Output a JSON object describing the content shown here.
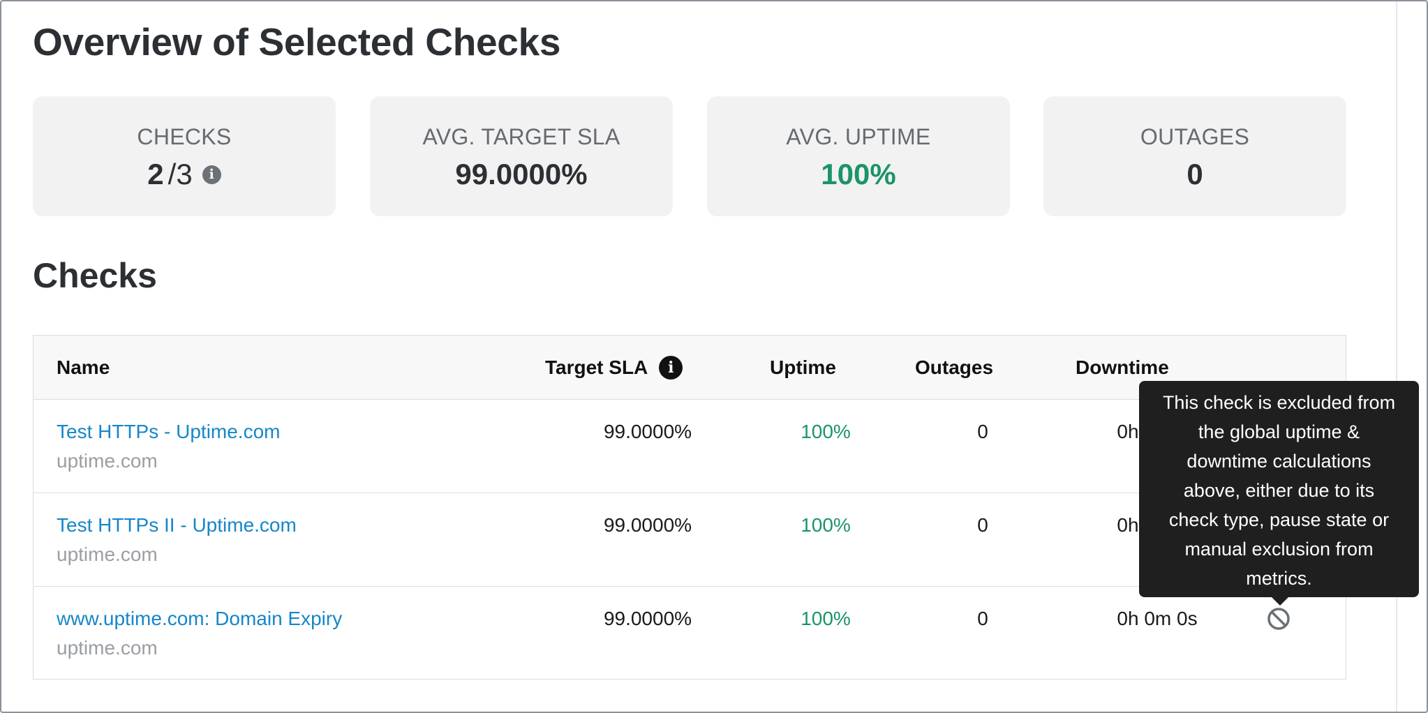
{
  "page": {
    "title": "Overview of Selected Checks"
  },
  "stats": [
    {
      "label": "CHECKS",
      "value": "2",
      "sub": "/3",
      "has_info": true,
      "info_glyph": "i"
    },
    {
      "label": "AVG. TARGET SLA",
      "value": "99.0000%"
    },
    {
      "label": "AVG. UPTIME",
      "value": "100%",
      "color": "#1b9466"
    },
    {
      "label": "OUTAGES",
      "value": "0"
    }
  ],
  "checks_section": {
    "title": "Checks"
  },
  "table": {
    "headers": {
      "name": "Name",
      "target_sla": "Target SLA",
      "target_sla_info_glyph": "i",
      "uptime": "Uptime",
      "outages": "Outages",
      "downtime": "Downtime"
    },
    "rows": [
      {
        "name": "Test HTTPs - Uptime.com",
        "host": "uptime.com",
        "target_sla": "99.0000%",
        "uptime": "100%",
        "outages": "0",
        "downtime": "0h 0m 0s",
        "excluded_icon": "prohibited-icon"
      },
      {
        "name": "Test HTTPs II - Uptime.com",
        "host": "uptime.com",
        "target_sla": "99.0000%",
        "uptime": "100%",
        "outages": "0",
        "downtime": "0h 0m 0s",
        "excluded_icon": "prohibited-icon"
      },
      {
        "name": "www.uptime.com: Domain Expiry",
        "host": "uptime.com",
        "target_sla": "99.0000%",
        "uptime": "100%",
        "outages": "0",
        "downtime": "0h 0m 0s",
        "excluded_icon": "prohibited-icon"
      }
    ]
  },
  "tooltip": {
    "lines": [
      "This check is excluded from",
      "the global uptime &",
      "downtime calculations",
      "above, either due to its",
      "check type, pause state or",
      "manual exclusion from",
      "metrics."
    ]
  },
  "colors": {
    "link": "#1686c9",
    "success": "#1b9466",
    "muted": "#9a9ea3",
    "card_bg": "#f2f2f2",
    "tooltip_bg": "#1f1f1f"
  }
}
